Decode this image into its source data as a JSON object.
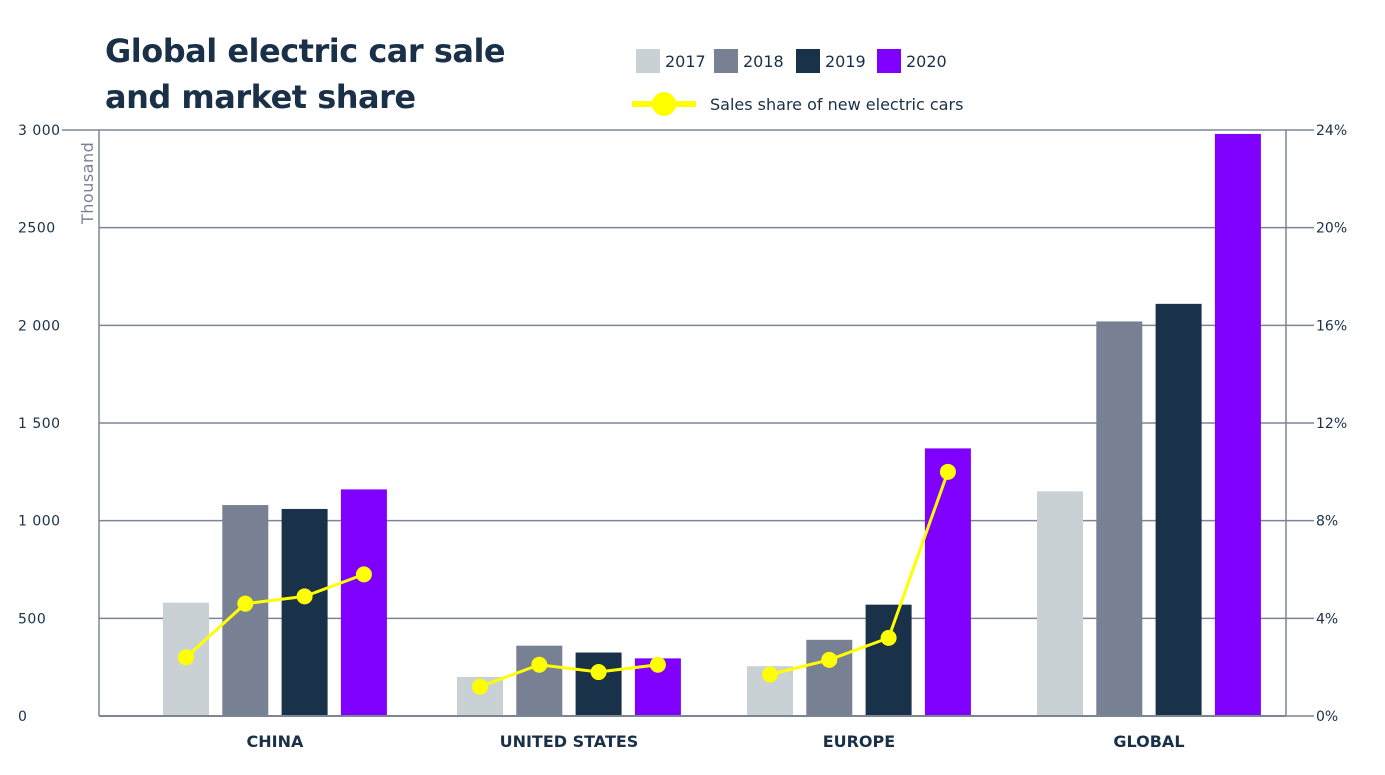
{
  "title": "Global electric car sale and market share",
  "chart_data": {
    "type": "bar",
    "title": "Global electric car sale and market share",
    "categories": [
      "CHINA",
      "UNITED STATES",
      "EUROPE",
      "GLOBAL"
    ],
    "series": [
      {
        "name": "2017",
        "color": "#c9d1d4",
        "values": [
          580,
          200,
          255,
          1150
        ]
      },
      {
        "name": "2018",
        "color": "#788194",
        "values": [
          1080,
          360,
          390,
          2020
        ]
      },
      {
        "name": "2019",
        "color": "#19324a",
        "values": [
          1060,
          325,
          570,
          2110
        ]
      },
      {
        "name": "2020",
        "color": "#7f00ff",
        "values": [
          1160,
          295,
          1370,
          2980
        ]
      }
    ],
    "line_series": {
      "name": "Sales share of new electric cars",
      "color": "#ffff00",
      "unit": "%",
      "values": [
        [
          2.4,
          4.6,
          4.9,
          5.8
        ],
        [
          1.2,
          2.1,
          1.8,
          2.1
        ],
        [
          1.7,
          2.3,
          3.2,
          10.0
        ]
      ]
    },
    "ylabel": "Thousand",
    "ylim": [
      0,
      3000
    ],
    "y_ticks": [
      "0",
      "500",
      "1 000",
      "1 500",
      "2 000",
      "2500",
      "3 000"
    ],
    "y2lim": [
      0,
      24
    ],
    "y2_ticks": [
      "0%",
      "4%",
      "8%",
      "12%",
      "16%",
      "20%",
      "24%"
    ],
    "grid": true,
    "legend_position": "top"
  }
}
